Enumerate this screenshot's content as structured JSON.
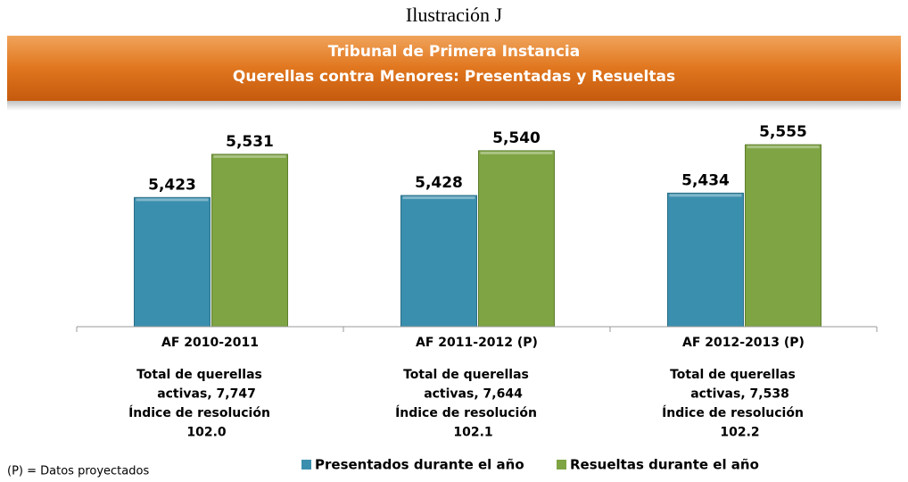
{
  "chart_data": {
    "type": "bar",
    "label": "Ilustración J",
    "title": [
      "Tribunal de Primera Instancia",
      "Querellas contra Menores: Presentadas y Resueltas"
    ],
    "categories": [
      "AF 2010-2011",
      "AF 2011-2012 (P)",
      "AF 2012-2013 (P)"
    ],
    "series": [
      {
        "name": "Presentados durante el año",
        "color": "#3b8fae",
        "values": [
          5423,
          5428,
          5434
        ],
        "value_labels": [
          "5,423",
          "5,428",
          "5,434"
        ]
      },
      {
        "name": "Resueltas durante el año",
        "color": "#7ea443",
        "values": [
          5531,
          5540,
          5555
        ],
        "value_labels": [
          "5,531",
          "5,540",
          "5,555"
        ]
      }
    ],
    "ylim": [
      5100,
      5600
    ],
    "notes": [
      [
        "Total de querellas",
        "activas, 7,747",
        "Índice de resolución",
        "102.0"
      ],
      [
        "Total de querellas",
        "activas, 7,644",
        "Índice de resolución",
        "102.1"
      ],
      [
        "Total de querellas",
        "activas, 7,538",
        "Índice de resolución",
        "102.2"
      ]
    ],
    "footnote": "(P) = Datos proyectados"
  }
}
